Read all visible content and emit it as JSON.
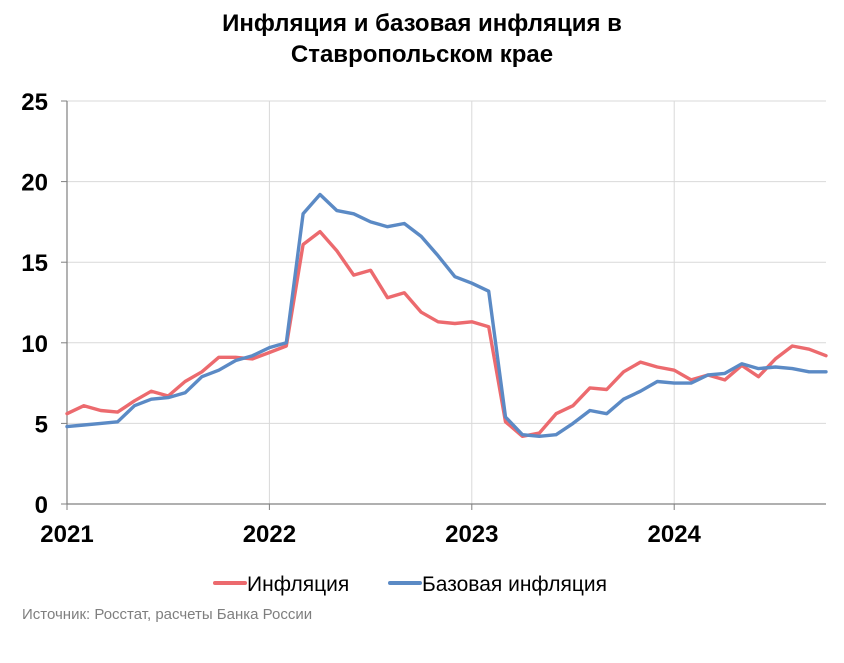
{
  "chart_data": {
    "type": "line",
    "title_line1": "Инфляция и базовая инфляция в",
    "title_line2": "Ставропольском крае",
    "xlabel": "",
    "ylabel": "",
    "ylim": [
      0,
      25
    ],
    "xlim": [
      "2021-01",
      "2024-10"
    ],
    "y_ticks": [
      0,
      5,
      10,
      15,
      20,
      25
    ],
    "x_ticks": [
      {
        "label": "2021",
        "month": "2021-01"
      },
      {
        "label": "2022",
        "month": "2022-01"
      },
      {
        "label": "2023",
        "month": "2023-01"
      },
      {
        "label": "2024",
        "month": "2024-01"
      }
    ],
    "grid": true,
    "legend_position": "bottom",
    "x": [
      "2021-01",
      "2021-02",
      "2021-03",
      "2021-04",
      "2021-05",
      "2021-06",
      "2021-07",
      "2021-08",
      "2021-09",
      "2021-10",
      "2021-11",
      "2021-12",
      "2022-01",
      "2022-02",
      "2022-03",
      "2022-04",
      "2022-05",
      "2022-06",
      "2022-07",
      "2022-08",
      "2022-09",
      "2022-10",
      "2022-11",
      "2022-12",
      "2023-01",
      "2023-02",
      "2023-03",
      "2023-04",
      "2023-05",
      "2023-06",
      "2023-07",
      "2023-08",
      "2023-09",
      "2023-10",
      "2023-11",
      "2023-12",
      "2024-01",
      "2024-02",
      "2024-03",
      "2024-04",
      "2024-05",
      "2024-06",
      "2024-07",
      "2024-08",
      "2024-09",
      "2024-10"
    ],
    "series": [
      {
        "name": "Инфляция",
        "color": "#ec6a6e",
        "values": [
          5.6,
          6.1,
          5.8,
          5.7,
          6.4,
          7.0,
          6.7,
          7.6,
          8.2,
          9.1,
          9.1,
          9.0,
          9.4,
          9.8,
          16.1,
          16.9,
          15.7,
          14.2,
          14.5,
          12.8,
          13.1,
          11.9,
          11.3,
          11.2,
          11.3,
          11.0,
          5.1,
          4.2,
          4.4,
          5.6,
          6.1,
          7.2,
          7.1,
          8.2,
          8.8,
          8.5,
          8.3,
          7.7,
          8.0,
          7.7,
          8.6,
          7.9,
          9.0,
          9.8,
          9.6,
          9.2
        ]
      },
      {
        "name": "Базовая инфляция",
        "color": "#5b8ac5",
        "values": [
          4.8,
          4.9,
          5.0,
          5.1,
          6.1,
          6.5,
          6.6,
          6.9,
          7.9,
          8.3,
          8.9,
          9.2,
          9.7,
          10.0,
          18.0,
          19.2,
          18.2,
          18.0,
          17.5,
          17.2,
          17.4,
          16.6,
          15.4,
          14.1,
          13.7,
          13.2,
          5.4,
          4.3,
          4.2,
          4.3,
          5.0,
          5.8,
          5.6,
          6.5,
          7.0,
          7.6,
          7.5,
          7.5,
          8.0,
          8.1,
          8.7,
          8.4,
          8.5,
          8.4,
          8.2,
          8.2
        ]
      }
    ],
    "axis_color": "#808080",
    "grid_color": "#d9d9d9"
  },
  "source": "Источник: Росстат, расчеты Банка России"
}
